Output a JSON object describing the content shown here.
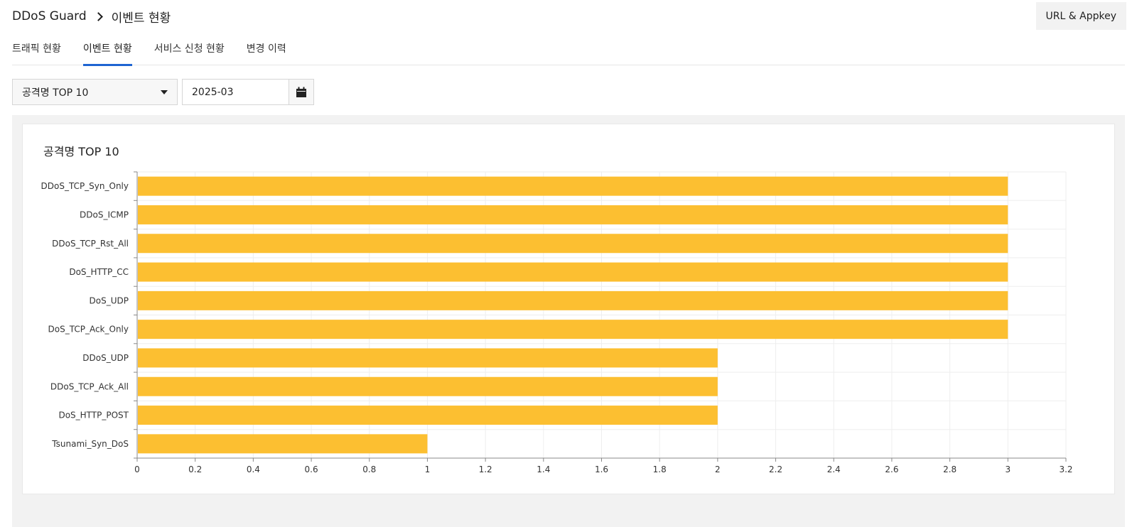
{
  "breadcrumb": {
    "service": "DDoS Guard",
    "current": "이벤트 현황"
  },
  "header": {
    "appkey_label": "URL & Appkey"
  },
  "tabs": [
    {
      "label": "트래픽 현황"
    },
    {
      "label": "이벤트 현황",
      "active": true
    },
    {
      "label": "서비스 신청 현황"
    },
    {
      "label": "변경 이력"
    }
  ],
  "filters": {
    "type_selected": "공격명 TOP 10",
    "month_value": "2025-03"
  },
  "colors": {
    "accent": "#1e64d2",
    "bar": "#fcbf31"
  },
  "chart_data": {
    "type": "bar",
    "orientation": "horizontal",
    "title": "공격명 TOP 10",
    "categories": [
      "DDoS_TCP_Syn_Only",
      "DDoS_ICMP",
      "DDoS_TCP_Rst_All",
      "DoS_HTTP_CC",
      "DoS_UDP",
      "DoS_TCP_Ack_Only",
      "DDoS_UDP",
      "DDoS_TCP_Ack_All",
      "DoS_HTTP_POST",
      "Tsunami_Syn_DoS"
    ],
    "values": [
      3,
      3,
      3,
      3,
      3,
      3,
      2,
      2,
      2,
      1
    ],
    "xlim": [
      0,
      3.2
    ],
    "xticks": [
      "0",
      "0.2",
      "0.4",
      "0.6",
      "0.8",
      "1",
      "1.2",
      "1.4",
      "1.6",
      "1.8",
      "2",
      "2.2",
      "2.4",
      "2.6",
      "2.8",
      "3",
      "3.2"
    ],
    "grid": true,
    "legend": "none"
  }
}
